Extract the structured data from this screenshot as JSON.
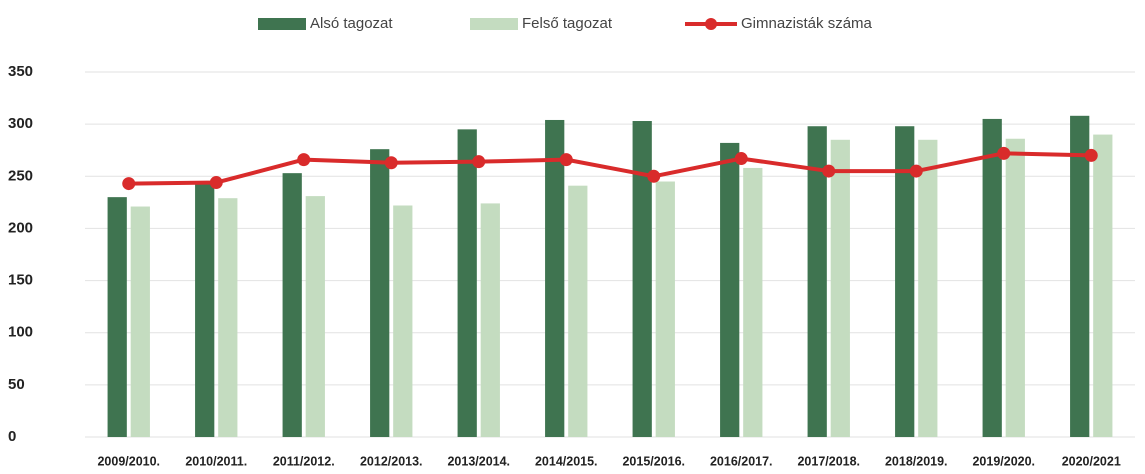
{
  "chart_data": {
    "type": "bar_line",
    "categories": [
      "2009/2010.",
      "2010/2011.",
      "2011/2012.",
      "2012/2013.",
      "2013/2014.",
      "2014/2015.",
      "2015/2016.",
      "2016/2017.",
      "2017/2018.",
      "2018/2019.",
      "2019/2020.",
      "2020/2021"
    ],
    "series": [
      {
        "name": "Alsó tagozat",
        "color": "#3f7450",
        "kind": "bar",
        "values": [
          230,
          245,
          253,
          276,
          295,
          304,
          303,
          282,
          298,
          298,
          305,
          308
        ]
      },
      {
        "name": "Felső tagozat",
        "color": "#c4dcc0",
        "kind": "bar",
        "values": [
          221,
          229,
          231,
          222,
          224,
          241,
          245,
          258,
          285,
          285,
          286,
          290
        ]
      },
      {
        "name": "Gimnazisták száma",
        "color": "#d92b2b",
        "kind": "line",
        "values": [
          243,
          244,
          266,
          263,
          264,
          266,
          250,
          267,
          255,
          255,
          272,
          270
        ]
      }
    ],
    "ylim": [
      0,
      350
    ],
    "yticks": [
      0,
      50,
      100,
      150,
      200,
      250,
      300,
      350
    ],
    "grid": true,
    "legend": "top"
  }
}
